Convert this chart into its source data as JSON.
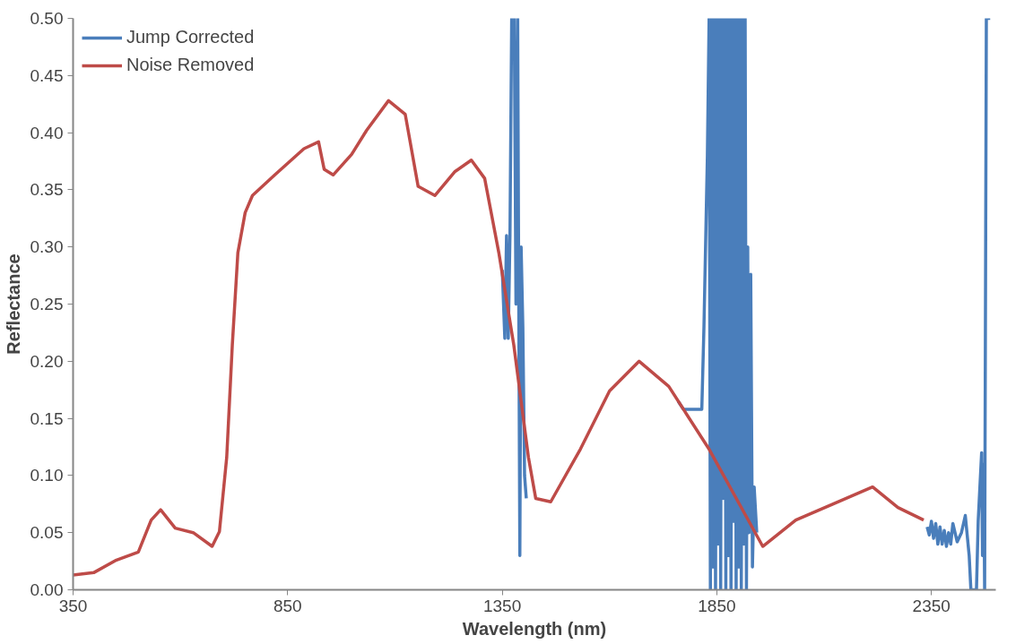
{
  "chart_data": {
    "type": "line",
    "xlabel": "Wavelength (nm)",
    "ylabel": "Reflectance",
    "xlim": [
      350,
      2500
    ],
    "ylim": [
      0,
      0.5
    ],
    "xticks": [
      350,
      850,
      1350,
      1850,
      2350
    ],
    "yticks": [
      {
        "value": 0,
        "label": "0.00"
      },
      0.05,
      {
        "value": 0.1,
        "label": "0.10"
      },
      0.15,
      {
        "value": 0.2,
        "label": "0.20"
      },
      0.25,
      {
        "value": 0.3,
        "label": "0.30"
      },
      0.35,
      {
        "value": 0.4,
        "label": "0.40"
      },
      0.45,
      {
        "value": 0.5,
        "label": "0.50"
      }
    ],
    "grid": false,
    "legend": "top left",
    "line_style": "solid",
    "marker": "none",
    "series": [
      {
        "name": "Jump Corrected",
        "color": "#4a7ebb",
        "x": [
          1350,
          1356,
          1360,
          1364,
          1368,
          1372,
          1378,
          1382,
          1386,
          1388,
          1391,
          1394,
          1398,
          1402,
          1406,
          1600,
          1760,
          1772,
          1815,
          1820,
          1828,
          1832,
          1835,
          1838,
          1841,
          1844,
          1847,
          1850,
          1853,
          1856,
          1859,
          1862,
          1865,
          1868,
          1871,
          1874,
          1877,
          1880,
          1883,
          1886,
          1889,
          1892,
          1895,
          1898,
          1901,
          1904,
          1907,
          1910,
          1913,
          1916,
          1919,
          1922,
          1925,
          1929,
          1933,
          1937,
          1943,
          2100,
          2340,
          2345,
          2350,
          2355,
          2360,
          2365,
          2370,
          2375,
          2380,
          2385,
          2390,
          2395,
          2400,
          2410,
          2420,
          2429,
          2438,
          2442,
          2455,
          2459,
          2467,
          2469,
          2472,
          2474,
          2478,
          2487
        ],
        "values": [
          0.28,
          0.22,
          0.31,
          0.22,
          0.31,
          0.5,
          0.5,
          0.25,
          0.5,
          0.3,
          0.03,
          0.3,
          0.23,
          0.1,
          0.08,
          null,
          0.165,
          0.158,
          0.158,
          0.23,
          0.38,
          0.5,
          0,
          0.5,
          0.02,
          0.5,
          0,
          0.5,
          0.04,
          0.5,
          0,
          0.5,
          0.08,
          0.5,
          0,
          0.5,
          0.03,
          0.5,
          0,
          0.5,
          0.06,
          0.5,
          0,
          0.5,
          0.02,
          0.5,
          0,
          0.5,
          0.04,
          0.5,
          0,
          0.3,
          0.05,
          0.276,
          0.02,
          0.09,
          0.05,
          null,
          0.055,
          0.048,
          0.06,
          0.045,
          0.058,
          0.04,
          0.055,
          0.04,
          0.052,
          0.038,
          0.05,
          0.04,
          0.058,
          0.042,
          0.05,
          0.065,
          0.03,
          0,
          0,
          0.06,
          0.12,
          0.03,
          0.11,
          0,
          0.5,
          0.5
        ]
      },
      {
        "name": "Noise Removed",
        "color": "#be4b48",
        "x": [
          350,
          398,
          451,
          502,
          532,
          554,
          588,
          630,
          674,
          691,
          708,
          721,
          734,
          751,
          768,
          820,
          888,
          922,
          935,
          956,
          999,
          1034,
          1085,
          1124,
          1154,
          1193,
          1240,
          1278,
          1309,
          1342,
          1377,
          1411,
          1428,
          1463,
          1532,
          1600,
          1669,
          1738,
          1832,
          1957,
          2034,
          2120,
          2213,
          2272,
          2332
        ],
        "values": [
          0.013,
          0.015,
          0.026,
          0.033,
          0.061,
          0.07,
          0.054,
          0.05,
          0.038,
          0.051,
          0.116,
          0.214,
          0.295,
          0.33,
          0.345,
          0.363,
          0.386,
          0.392,
          0.368,
          0.363,
          0.381,
          0.402,
          0.428,
          0.416,
          0.353,
          0.345,
          0.366,
          0.376,
          0.36,
          0.295,
          0.214,
          0.116,
          0.08,
          0.077,
          0.123,
          0.174,
          0.2,
          0.178,
          0.123,
          0.038,
          0.061,
          0.075,
          0.09,
          0.072,
          0.061
        ]
      }
    ]
  }
}
